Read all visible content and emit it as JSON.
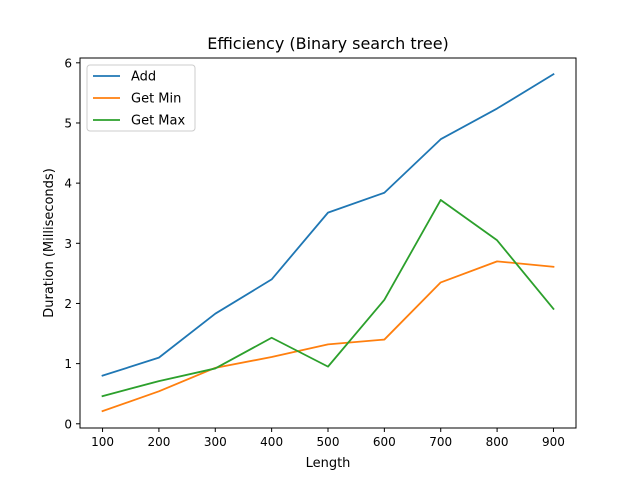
{
  "chart_data": {
    "type": "line",
    "title": "Efficiency (Binary search tree)",
    "xlabel": "Length",
    "ylabel": "Duration (Milliseconds)",
    "x": [
      100,
      200,
      300,
      400,
      500,
      600,
      700,
      800,
      900
    ],
    "xticks": [
      "100",
      "200",
      "300",
      "400",
      "500",
      "600",
      "700",
      "800",
      "900"
    ],
    "yticks": [
      "0",
      "1",
      "2",
      "3",
      "4",
      "5",
      "6"
    ],
    "xlim": [
      60,
      940
    ],
    "ylim": [
      -0.07,
      6.08
    ],
    "grid": false,
    "legend_position": "top-left",
    "series": [
      {
        "name": "Add",
        "color": "#1f77b4",
        "values": [
          0.8,
          1.1,
          1.83,
          2.4,
          3.51,
          3.84,
          4.73,
          5.24,
          5.81
        ]
      },
      {
        "name": "Get Min",
        "color": "#ff7f0e",
        "values": [
          0.21,
          0.54,
          0.93,
          1.11,
          1.32,
          1.4,
          2.35,
          2.7,
          2.61
        ]
      },
      {
        "name": "Get Max",
        "color": "#2ca02c",
        "values": [
          0.46,
          0.71,
          0.92,
          1.43,
          0.95,
          2.06,
          3.72,
          3.05,
          1.91
        ]
      }
    ]
  }
}
